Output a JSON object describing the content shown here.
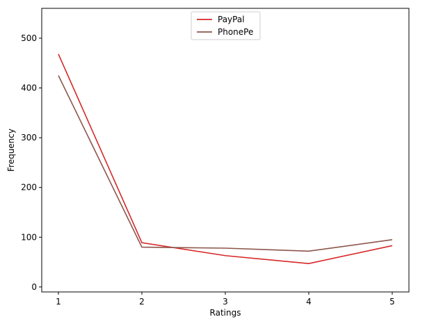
{
  "chart_data": {
    "type": "line",
    "title": "",
    "xlabel": "Ratings",
    "ylabel": "Frequency",
    "x": [
      1,
      2,
      3,
      4,
      5
    ],
    "xlim": [
      0.8,
      5.2
    ],
    "ylim": [
      -10,
      560
    ],
    "xticks": [
      1,
      2,
      3,
      4,
      5
    ],
    "yticks": [
      0,
      100,
      200,
      300,
      400,
      500
    ],
    "grid": false,
    "legend_position": "upper center",
    "series": [
      {
        "name": "PayPal",
        "color": "#d62728",
        "values": [
          468,
          89,
          63,
          47,
          83
        ]
      },
      {
        "name": "PhonePe",
        "color": "#8c564b",
        "values": [
          425,
          80,
          78,
          72,
          95
        ]
      }
    ]
  }
}
